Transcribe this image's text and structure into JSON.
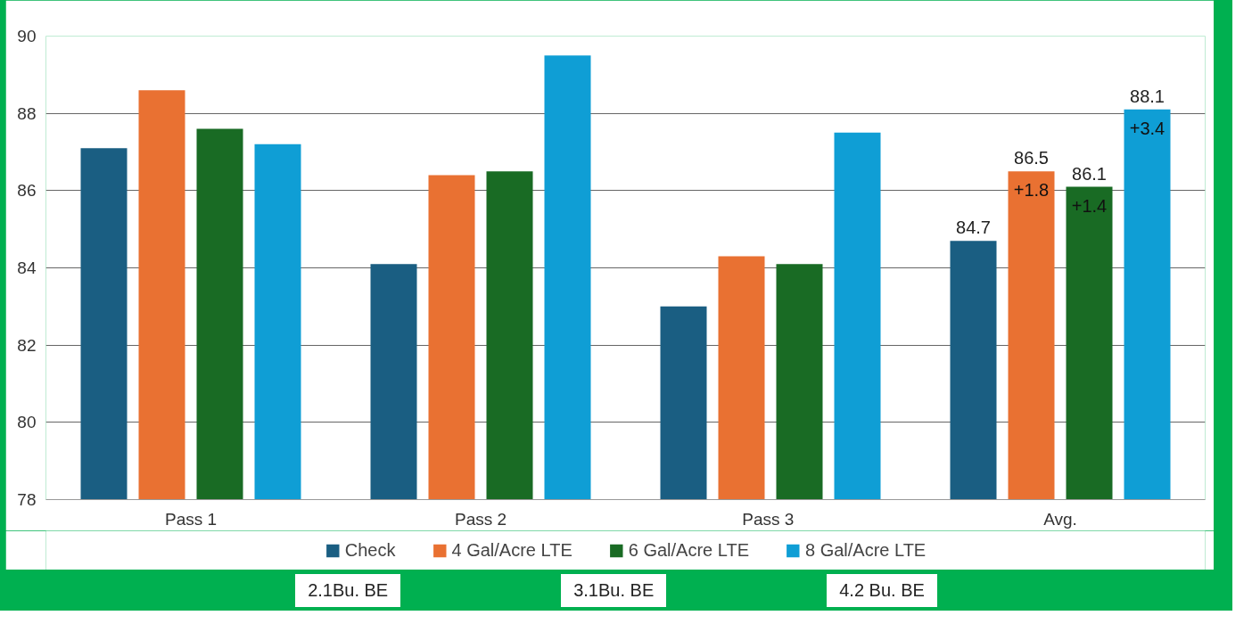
{
  "chart_data": {
    "type": "bar",
    "categories": [
      "Pass 1",
      "Pass 2",
      "Pass  3",
      "Avg."
    ],
    "series": [
      {
        "name": "Check",
        "color": "#1a5e82",
        "values": [
          87.1,
          84.1,
          83.0,
          84.7
        ],
        "value_labels": [
          null,
          null,
          null,
          "84.7"
        ]
      },
      {
        "name": "4 Gal/Acre LTE",
        "color": "#e97132",
        "values": [
          88.6,
          86.4,
          84.3,
          86.5
        ],
        "value_labels": [
          null,
          null,
          null,
          "86.5"
        ]
      },
      {
        "name": "6 Gal/Acre LTE",
        "color": "#196b24",
        "values": [
          87.6,
          86.5,
          84.1,
          86.1
        ],
        "value_labels": [
          null,
          null,
          null,
          "86.1"
        ]
      },
      {
        "name": "8 Gal/Acre LTE",
        "color": "#0f9ed5",
        "values": [
          87.2,
          89.5,
          87.5,
          88.1
        ],
        "value_labels": [
          null,
          null,
          null,
          "88.1"
        ]
      }
    ],
    "ylim": [
      78,
      90
    ],
    "yticks": [
      78,
      80,
      82,
      84,
      86,
      88,
      90
    ],
    "grid": "y",
    "legend": "bottom",
    "annotations": [
      "+1.8",
      "+1.4",
      "+3.4",
      "2.1Bu. BE",
      "3.1Bu. BE",
      "4.2 Bu. BE"
    ]
  }
}
